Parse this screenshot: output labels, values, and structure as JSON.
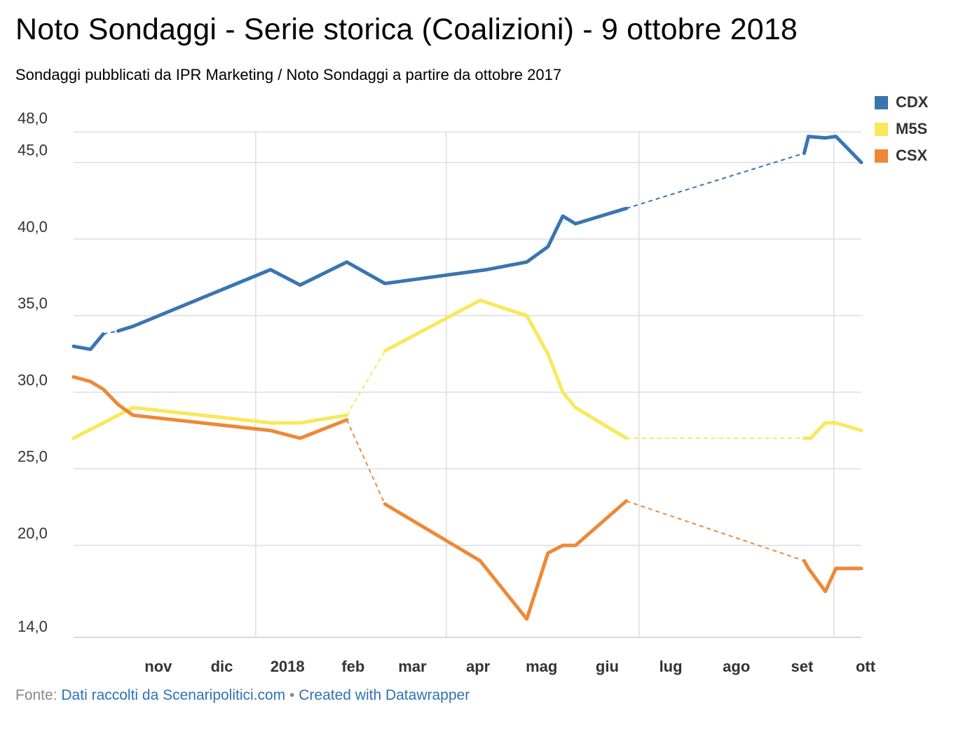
{
  "chart_data": {
    "type": "line",
    "title": "Noto Sondaggi - Serie storica (Coalizioni) - 9 ottobre 2018",
    "subtitle": "Sondaggi pubblicati da IPR Marketing / Noto Sondaggi a partire da ottobre 2017",
    "source_label": "Fonte:",
    "source_text": "Dati raccolti da Scenaripolitici.com",
    "separator": "•",
    "credit": "Created with Datawrapper",
    "ylim": [
      14.0,
      48.0
    ],
    "yticks": [
      {
        "value": 48.0,
        "label": "48,0"
      },
      {
        "value": 45.0,
        "label": "45,0"
      },
      {
        "value": 40.0,
        "label": "40,0"
      },
      {
        "value": 35.0,
        "label": "35,0"
      },
      {
        "value": 30.0,
        "label": "30,0"
      },
      {
        "value": 25.0,
        "label": "25,0"
      },
      {
        "value": 20.0,
        "label": "20,0"
      },
      {
        "value": 14.0,
        "label": "14,0"
      }
    ],
    "xlim": [
      "2017-10-07",
      "2018-10-14"
    ],
    "xticks": [
      {
        "date": "2017-11-01",
        "label": "nov"
      },
      {
        "date": "2017-12-01",
        "label": "dic"
      },
      {
        "date": "2018-01-01",
        "label": "2018"
      },
      {
        "date": "2018-02-01",
        "label": "feb"
      },
      {
        "date": "2018-03-01",
        "label": "mar"
      },
      {
        "date": "2018-04-01",
        "label": "apr"
      },
      {
        "date": "2018-05-01",
        "label": "mag"
      },
      {
        "date": "2018-06-01",
        "label": "giu"
      },
      {
        "date": "2018-07-01",
        "label": "lug"
      },
      {
        "date": "2018-08-01",
        "label": "ago"
      },
      {
        "date": "2018-09-01",
        "label": "set"
      },
      {
        "date": "2018-10-01",
        "label": "ott"
      }
    ],
    "gridlines_x": [
      "2018-01-01",
      "2018-04-01",
      "2018-07-01",
      "2018-10-01"
    ],
    "legend_position": "top-right",
    "series": [
      {
        "name": "CDX",
        "color": "#3a75b0",
        "points": [
          [
            "2017-10-07",
            33.0
          ],
          [
            "2017-10-15",
            32.8
          ],
          [
            "2017-10-21",
            33.8
          ],
          [
            "2017-10-28",
            34.0
          ],
          [
            "2017-11-04",
            34.3
          ],
          [
            "2018-01-08",
            38.0
          ],
          [
            "2018-01-22",
            37.0
          ],
          [
            "2018-02-13",
            38.5
          ],
          [
            "2018-03-03",
            37.1
          ],
          [
            "2018-04-20",
            38.0
          ],
          [
            "2018-05-09",
            38.5
          ],
          [
            "2018-05-19",
            39.5
          ],
          [
            "2018-05-26",
            41.5
          ],
          [
            "2018-06-01",
            41.0
          ],
          [
            "2018-06-25",
            42.0
          ],
          [
            "2018-09-17",
            45.6
          ],
          [
            "2018-09-19",
            46.7
          ],
          [
            "2018-09-27",
            46.6
          ],
          [
            "2018-10-02",
            46.7
          ],
          [
            "2018-10-14",
            45.0
          ]
        ],
        "dashed_segments": [
          [
            2,
            3
          ],
          [
            14,
            15
          ]
        ]
      },
      {
        "name": "M5S",
        "color": "#f9e85a",
        "points": [
          [
            "2017-10-07",
            27.0
          ],
          [
            "2017-11-04",
            29.0
          ],
          [
            "2018-01-08",
            28.0
          ],
          [
            "2018-01-22",
            28.0
          ],
          [
            "2018-02-13",
            28.5
          ],
          [
            "2018-03-03",
            32.7
          ],
          [
            "2018-04-17",
            36.0
          ],
          [
            "2018-05-09",
            35.0
          ],
          [
            "2018-05-19",
            32.5
          ],
          [
            "2018-05-26",
            30.0
          ],
          [
            "2018-06-01",
            29.0
          ],
          [
            "2018-06-25",
            27.0
          ],
          [
            "2018-09-17",
            27.0
          ],
          [
            "2018-09-20",
            27.0
          ],
          [
            "2018-09-27",
            28.0
          ],
          [
            "2018-10-02",
            28.0
          ],
          [
            "2018-10-14",
            27.5
          ]
        ],
        "dashed_segments": [
          [
            4,
            5
          ],
          [
            11,
            12
          ]
        ]
      },
      {
        "name": "CSX",
        "color": "#ed8936",
        "points": [
          [
            "2017-10-07",
            31.0
          ],
          [
            "2017-10-15",
            30.7
          ],
          [
            "2017-10-21",
            30.2
          ],
          [
            "2017-10-28",
            29.2
          ],
          [
            "2017-11-04",
            28.5
          ],
          [
            "2018-01-08",
            27.5
          ],
          [
            "2018-01-22",
            27.0
          ],
          [
            "2018-02-13",
            28.2
          ],
          [
            "2018-03-03",
            22.7
          ],
          [
            "2018-04-17",
            19.0
          ],
          [
            "2018-05-09",
            15.2
          ],
          [
            "2018-05-19",
            19.5
          ],
          [
            "2018-05-26",
            20.0
          ],
          [
            "2018-06-01",
            20.0
          ],
          [
            "2018-06-25",
            22.9
          ],
          [
            "2018-09-17",
            19.0
          ],
          [
            "2018-09-19",
            18.5
          ],
          [
            "2018-09-27",
            17.0
          ],
          [
            "2018-10-02",
            18.5
          ],
          [
            "2018-10-14",
            18.5
          ]
        ],
        "dashed_segments": [
          [
            7,
            8
          ],
          [
            14,
            15
          ]
        ]
      }
    ]
  }
}
